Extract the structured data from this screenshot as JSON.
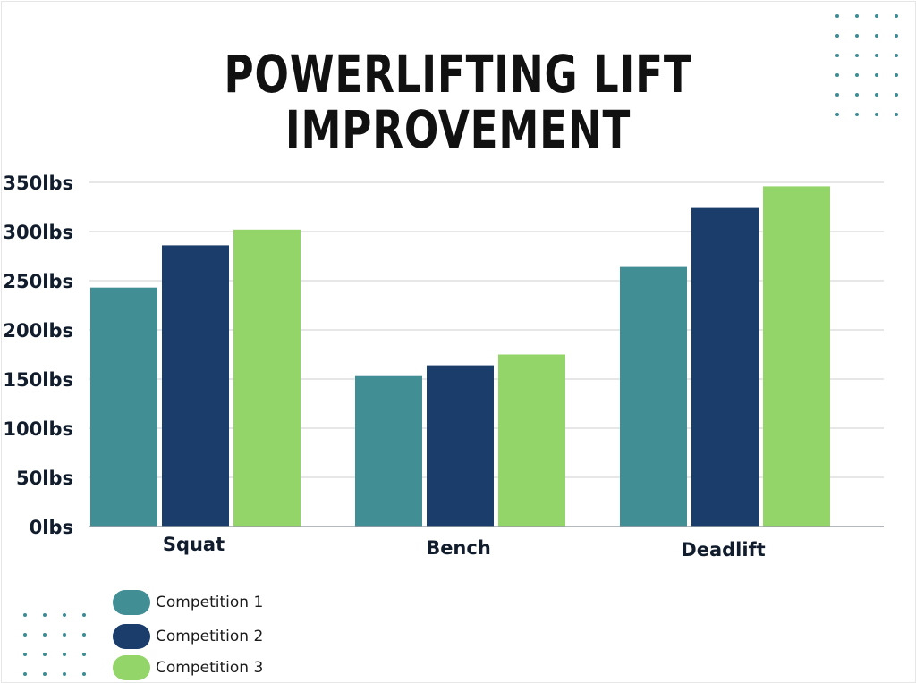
{
  "title_lines": [
    "POWERLIFTING LIFT",
    "IMPROVEMENT"
  ],
  "colors": {
    "series": [
      "#418f95",
      "#1a3d6b",
      "#94d56a"
    ],
    "dots": "#3e8c93",
    "grid": "#cfcfcf",
    "axis_text": "#111c2c"
  },
  "icons": {
    "top_right": "dot-grid-icon",
    "bottom_left": "dot-grid-icon"
  },
  "chart_data": {
    "type": "bar",
    "title": "POWERLIFTING LIFT IMPROVEMENT",
    "categories": [
      "Squat",
      "Bench",
      "Deadlift"
    ],
    "series": [
      {
        "name": "Competition 1",
        "values": [
          243,
          153,
          264
        ]
      },
      {
        "name": "Competition 2",
        "values": [
          286,
          164,
          324
        ]
      },
      {
        "name": "Competition 3",
        "values": [
          302,
          175,
          346
        ]
      }
    ],
    "ylim": [
      0,
      350
    ],
    "yticks": [
      0,
      50,
      100,
      150,
      200,
      250,
      300,
      350
    ],
    "ytick_labels": [
      "0lbs",
      "50lbs",
      "100lbs",
      "150lbs",
      "200lbs",
      "250lbs",
      "300lbs",
      "350lbs"
    ],
    "grid": true,
    "legend_position": "bottom-left"
  }
}
